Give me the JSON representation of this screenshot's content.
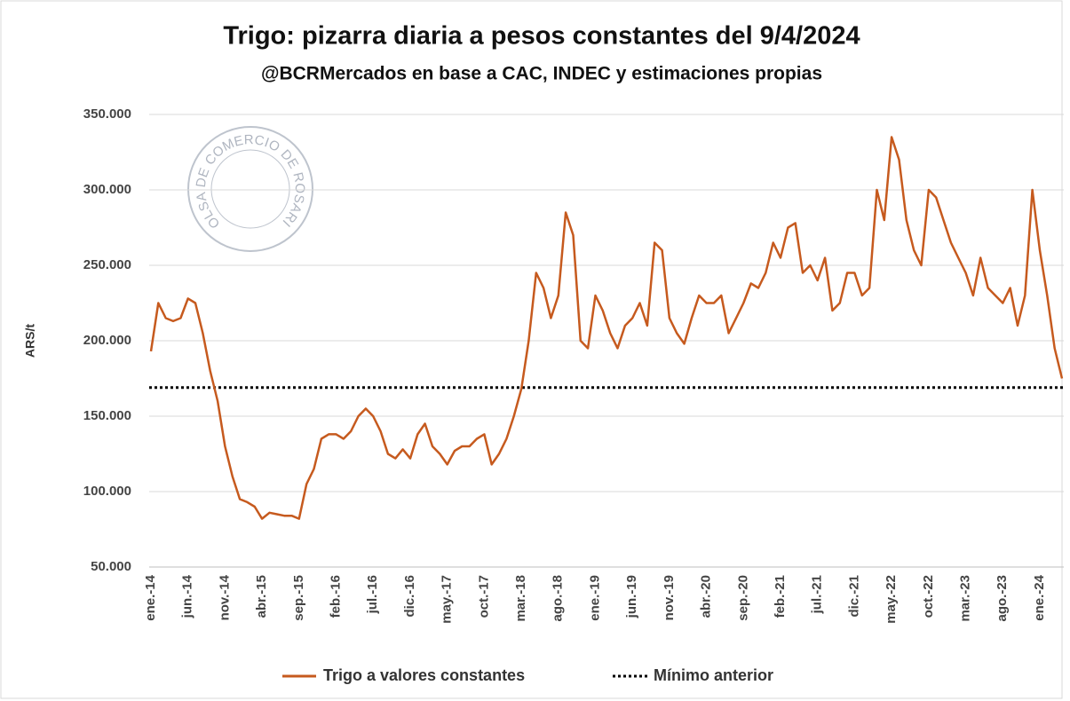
{
  "chart_data": {
    "type": "line",
    "title": "Trigo: pizarra diaria a pesos constantes del 9/4/2024",
    "subtitle": "@BCRMercados en base a CAC, INDEC y estimaciones propias",
    "y_label": "ARS/t",
    "watermark": "BOLSA DE COMERCIO DE ROSARIO",
    "categories": [
      "ene.-14",
      null,
      null,
      null,
      null,
      "jun.-14",
      null,
      null,
      null,
      null,
      "nov.-14",
      null,
      null,
      null,
      null,
      "abr.-15",
      null,
      null,
      null,
      null,
      "sep.-15",
      null,
      null,
      null,
      null,
      "feb.-16",
      null,
      null,
      null,
      null,
      "jul.-16",
      null,
      null,
      null,
      null,
      "dic.-16",
      null,
      null,
      null,
      null,
      "may.-17",
      null,
      null,
      null,
      null,
      "oct.-17",
      null,
      null,
      null,
      null,
      "mar.-18",
      null,
      null,
      null,
      null,
      "ago.-18",
      null,
      null,
      null,
      null,
      "ene.-19",
      null,
      null,
      null,
      null,
      "jun.-19",
      null,
      null,
      null,
      null,
      "nov.-19",
      null,
      null,
      null,
      null,
      "abr.-20",
      null,
      null,
      null,
      null,
      "sep.-20",
      null,
      null,
      null,
      null,
      "feb.-21",
      null,
      null,
      null,
      null,
      "jul.-21",
      null,
      null,
      null,
      null,
      "dic.-21",
      null,
      null,
      null,
      null,
      "may.-22",
      null,
      null,
      null,
      null,
      "oct.-22",
      null,
      null,
      null,
      null,
      "mar.-23",
      null,
      null,
      null,
      null,
      "ago.-23",
      null,
      null,
      null,
      null,
      "ene.-24",
      null,
      null,
      null
    ],
    "series": [
      {
        "name": "Trigo a valores constantes",
        "color": "#c65a1e",
        "values": [
          193000,
          225000,
          215000,
          213000,
          215000,
          228000,
          225000,
          205000,
          180000,
          160000,
          130000,
          110000,
          95000,
          93000,
          90000,
          82000,
          86000,
          85000,
          84000,
          84000,
          82000,
          105000,
          115000,
          135000,
          138000,
          138000,
          135000,
          140000,
          150000,
          155000,
          150000,
          140000,
          125000,
          122000,
          128000,
          122000,
          138000,
          145000,
          130000,
          125000,
          118000,
          127000,
          130000,
          130000,
          135000,
          138000,
          118000,
          125000,
          135000,
          150000,
          168000,
          200000,
          245000,
          235000,
          215000,
          230000,
          285000,
          270000,
          200000,
          195000,
          230000,
          220000,
          205000,
          195000,
          210000,
          215000,
          225000,
          210000,
          265000,
          260000,
          215000,
          205000,
          198000,
          215000,
          230000,
          225000,
          225000,
          230000,
          205000,
          215000,
          225000,
          238000,
          235000,
          245000,
          265000,
          255000,
          275000,
          278000,
          245000,
          250000,
          240000,
          255000,
          220000,
          225000,
          245000,
          245000,
          230000,
          235000,
          300000,
          280000,
          335000,
          320000,
          280000,
          260000,
          250000,
          300000,
          295000,
          280000,
          265000,
          255000,
          245000,
          230000,
          255000,
          235000,
          230000,
          225000,
          235000,
          210000,
          230000,
          300000,
          260000,
          230000,
          195000,
          175000
        ]
      }
    ],
    "reference_lines": [
      {
        "name": "Mínimo anterior",
        "value": 169000,
        "color": "#000000"
      }
    ],
    "ylim": [
      50000,
      350000
    ],
    "yticks": [
      {
        "value": 50000,
        "label": "50.000"
      },
      {
        "value": 100000,
        "label": "100.000"
      },
      {
        "value": 150000,
        "label": "150.000"
      },
      {
        "value": 200000,
        "label": "200.000"
      },
      {
        "value": 250000,
        "label": "250.000"
      },
      {
        "value": 300000,
        "label": "300.000"
      },
      {
        "value": 350000,
        "label": "350.000"
      }
    ],
    "grid": true,
    "legend": "bottom"
  }
}
